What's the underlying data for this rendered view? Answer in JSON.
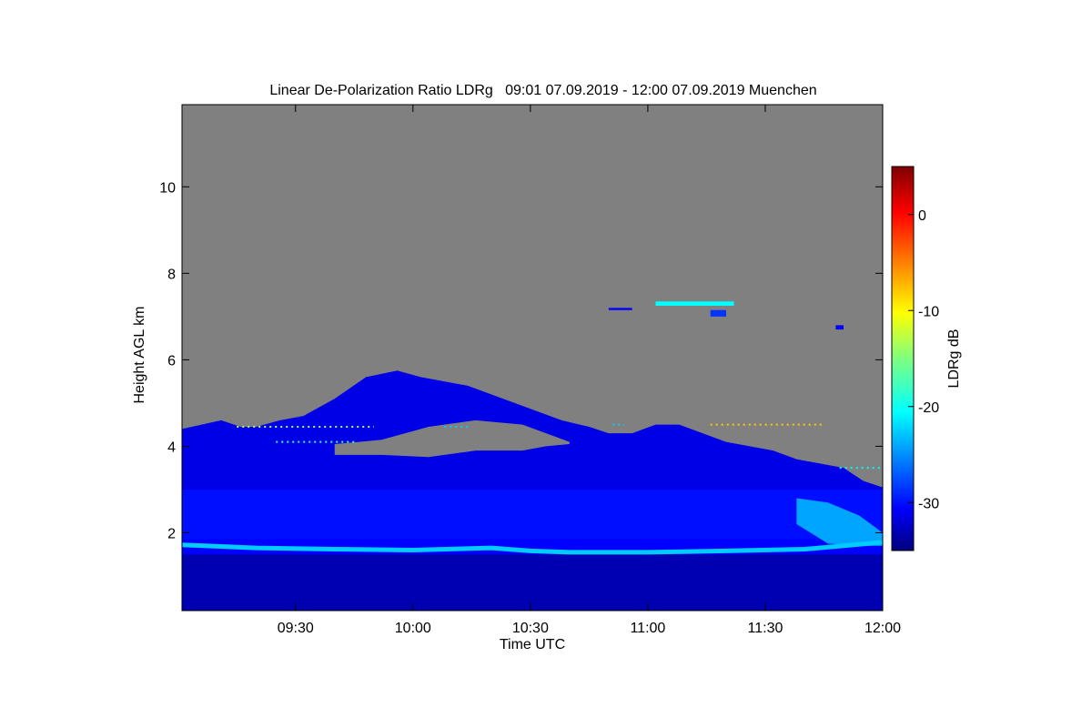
{
  "chart_data": {
    "type": "heatmap",
    "title": "Linear De-Polarization Ratio LDRg   09:01 07.09.2019 - 12:00 07.09.2019 Muenchen",
    "xlabel": "Time UTC",
    "ylabel": "Height AGL km",
    "x_unit": "minutes",
    "xlim": [
      541,
      720
    ],
    "ylim": [
      0.2,
      11.9
    ],
    "x_ticks": [
      570,
      600,
      630,
      660,
      690,
      720
    ],
    "x_tick_labels": [
      "09:30",
      "10:00",
      "10:30",
      "11:00",
      "11:30",
      "12:00"
    ],
    "y_ticks": [
      2,
      4,
      6,
      8,
      10
    ],
    "y_tick_labels": [
      "2",
      "4",
      "6",
      "8",
      "10"
    ],
    "colorbar": {
      "label": "LDRg dB",
      "range": [
        -35,
        5
      ],
      "ticks": [
        0,
        -10,
        -20,
        -30
      ],
      "tick_labels": [
        "0",
        "-10",
        "-20",
        "-30"
      ],
      "colormap": "jet"
    },
    "no_data_color": "#808080",
    "cloud_top_profile": {
      "time": [
        541,
        546,
        551,
        556,
        560,
        566,
        572,
        580,
        588,
        596,
        602,
        608,
        614,
        620,
        626,
        632,
        638,
        645,
        650,
        656,
        662,
        668,
        674,
        680,
        686,
        692,
        698,
        704,
        710,
        715,
        720
      ],
      "top_km": [
        4.4,
        4.5,
        4.6,
        4.45,
        4.45,
        4.6,
        4.7,
        5.1,
        5.6,
        5.75,
        5.6,
        5.5,
        5.4,
        5.2,
        5.0,
        4.8,
        4.6,
        4.45,
        4.3,
        4.3,
        4.5,
        4.5,
        4.3,
        4.1,
        4.0,
        3.9,
        3.7,
        3.6,
        3.5,
        3.2,
        3.05
      ],
      "ldr_db": -31
    },
    "uniform_layer_top_km": 3.0,
    "clear_gap": {
      "time": [
        580,
        592,
        604,
        616,
        628,
        634,
        640
      ],
      "bottom_km": [
        3.8,
        3.8,
        3.75,
        3.9,
        3.9,
        4.0,
        4.05
      ],
      "top_km": [
        4.05,
        4.15,
        4.45,
        4.6,
        4.5,
        4.3,
        4.1
      ]
    },
    "bright_band": {
      "time": [
        541,
        560,
        580,
        600,
        620,
        630,
        640,
        660,
        680,
        700,
        710,
        720
      ],
      "height_km": [
        1.72,
        1.65,
        1.62,
        1.6,
        1.65,
        1.58,
        1.55,
        1.55,
        1.58,
        1.62,
        1.7,
        1.78
      ],
      "ldr_db": -22
    },
    "boundary_layer": {
      "top_km": 1.5,
      "ldr_db": -33
    },
    "above_band_layer": {
      "bottom_km": 1.85,
      "top_km": 3.0,
      "ldr_db": -29
    },
    "enhanced_patch": {
      "time": [
        698,
        706,
        714,
        720
      ],
      "bottom_km": [
        2.2,
        1.75,
        1.7,
        1.7
      ],
      "top_km": [
        2.8,
        2.7,
        2.4,
        2.0
      ],
      "ldr_db": -22
    },
    "high_cloud_fragments": [
      {
        "t": [
          650,
          656
        ],
        "h": [
          7.15,
          7.2
        ],
        "ldr_db": -30
      },
      {
        "t": [
          662,
          682
        ],
        "h": [
          7.25,
          7.35
        ],
        "ldr_db": -20
      },
      {
        "t": [
          676,
          680
        ],
        "h": [
          7.0,
          7.15
        ],
        "ldr_db": -28
      },
      {
        "t": [
          708,
          710
        ],
        "h": [
          6.7,
          6.8
        ],
        "ldr_db": -30
      }
    ],
    "sparkle_lines": [
      {
        "t": [
          555,
          590
        ],
        "h": 4.45,
        "ldr_db": -14
      },
      {
        "t": [
          565,
          585
        ],
        "h": 4.1,
        "ldr_db": -18
      },
      {
        "t": [
          608,
          615
        ],
        "h": 4.45,
        "ldr_db": -22
      },
      {
        "t": [
          651,
          654
        ],
        "h": 4.5,
        "ldr_db": -22
      },
      {
        "t": [
          676,
          705
        ],
        "h": 4.5,
        "ldr_db": -8
      },
      {
        "t": [
          709,
          720
        ],
        "h": 3.5,
        "ldr_db": -20
      }
    ]
  }
}
